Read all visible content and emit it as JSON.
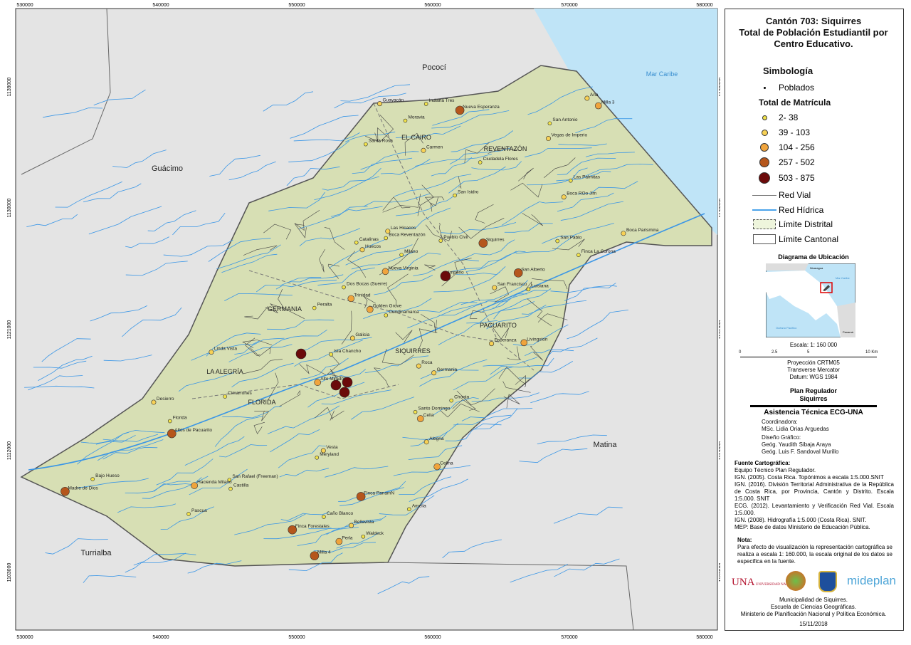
{
  "map": {
    "x_ticks": [
      "530000",
      "540000",
      "550000",
      "560000",
      "570000",
      "580000"
    ],
    "y_ticks": [
      "1139000",
      "1130000",
      "1121000",
      "1112000",
      "1103000"
    ],
    "neighbors": [
      "Pococí",
      "Guácimo",
      "Matina",
      "Turrialba",
      "Mar Caribe"
    ],
    "districts": [
      "EL CAIRO",
      "REVENTAZÓN",
      "GERMANIA",
      "LA ALEGRÍA",
      "FLORIDA",
      "SIQUIRRES",
      "PACUARITO"
    ],
    "places": [
      "Boca Parismina",
      "Boca ROo Jim",
      "Dos Bocas (Suerre)",
      "Caño Blanco",
      "Cundinamarca",
      "Finca La Corona",
      "Golden Grove",
      "Nueva Esperanza",
      "Vegas de Imperio",
      "San Rafael (Freeman)",
      "Peralta",
      "Meryland",
      "Ciudadela Flores",
      "Celina",
      "Imperio",
      "Perla",
      "Finca PanamN",
      "Waldeck",
      "Las Palmitas",
      "Milano",
      "Hacienda Milano",
      "Bellavista",
      "Pueblo Civil",
      "Santo Domingo",
      "San Alberto",
      "Amelia",
      "Isla Chancho",
      "Indiana Tres",
      "Livingston",
      "Siquirres",
      "Luisiana",
      "Alegria",
      "Celia",
      "Florida",
      "Vesta",
      "Roca",
      "Desierro",
      "Chonta",
      "Pascua",
      "Huecos",
      "Guayacán",
      "San Antonio",
      "Esperanza",
      "Linda Vista",
      "Moravia",
      "Cimarrones",
      "Madre de Dios",
      "Santa Rosa",
      "Trinidad",
      "Alto Mirador",
      "Finca Forestales",
      "Las Hicacos",
      "Bajo Hueso",
      "Altos de Pacuarito",
      "San Isidro",
      "San Pablo",
      "Galicia",
      "Germania",
      "Nueva Virginia",
      "Catalinas",
      "Castilla",
      "Ana",
      "Carmen",
      "San Francisco",
      "Milla 3",
      "Milla 4",
      "Boca Reventazón"
    ],
    "colors": {
      "land": "#d7dfb4",
      "relief": "#e2e2e2",
      "water": "#bfe4f7",
      "river": "#2f8fe0",
      "road": "#555555",
      "boundary": "#777777"
    }
  },
  "legend": {
    "title": "Cantón 703: Siquirres\nTotal de Población Estudiantil por Centro Educativo.",
    "title_lines": [
      "Cantón 703: Siquirres",
      "Total de Población Estudiantil por",
      "Centro Educativo."
    ],
    "simbologia": "Simbología",
    "poblados": "Poblados",
    "matricula_title": "Total de Matrícula",
    "classes": [
      {
        "label": "2- 38",
        "color": "#f2e34a"
      },
      {
        "label": "39 - 103",
        "color": "#f7d155"
      },
      {
        "label": "104 - 256",
        "color": "#f0a43c"
      },
      {
        "label": "257 - 502",
        "color": "#b5561c"
      },
      {
        "label": "503 - 875",
        "color": "#6b0a0a"
      }
    ],
    "red_vial": "Red Vial",
    "red_hidrica": "Red Hídrica",
    "limite_distrital": "Límite Distrital",
    "limite_cantonal": "Límite Cantonal"
  },
  "location": {
    "title": "Diagrama de Ubicación",
    "labels": [
      "Nicaragua",
      "Mar Caribe",
      "Océano Pacífico",
      "Panamá"
    ]
  },
  "scale": {
    "text": "Escala: 1: 160 000",
    "ticks": [
      "0",
      "2.5",
      "5",
      "10 Km"
    ],
    "projection": [
      "Proyección CRTM05",
      "Transverse Mercator",
      "Datum: WGS 1984"
    ]
  },
  "credits": {
    "plan": [
      "Plan Regulador",
      "Siquirres"
    ],
    "asistencia": "Asistencia Técnica ECG-UNA",
    "coord_label": "Coordinadora:",
    "coord_name": "MSc. Lidia Orias Arguedas",
    "design_label": "Diseño Gráfico:",
    "designers": [
      "Geóg. Yaudith Sibaja Araya",
      "Geóg. Luis F. Sandoval Murillo"
    ],
    "fuente_title": "Fuente Cartográfica:",
    "fuente": [
      "Equipo Técnico Plan Regulador.",
      "IGN. (2005). Costa Rica. Topónimos a escala 1:5.000.SNIT",
      "IGN. (2016). División Territorial Administrativa de la República de Costa Rica, por Provincia, Cantón y Distrito. Escala 1:5.000. SNIT",
      "ECG. (2012). Levantamiento y Verificación Red Vial. Escala 1:5.000.",
      "IGN. (2008). Hidrografía 1:5.000 (Costa Rica). SNIT.",
      "MEP: Base de datos Ministerio de Educación Pública."
    ],
    "nota_title": "Nota:",
    "nota": "Para efecto de visualización la representación cartográfica se realiza a escala 1: 160.000, la escala original de los datos se especifica en la fuente.",
    "logos": [
      "UNA UNIVERSIDAD NACIONAL",
      "mideplan"
    ],
    "institutions": [
      "Municipalidad de Siquirres.",
      "Escuela de Ciencias Geográficas.",
      "Ministerio de Planificación Nacional y Política Económica."
    ],
    "date": "15/11/2018"
  }
}
